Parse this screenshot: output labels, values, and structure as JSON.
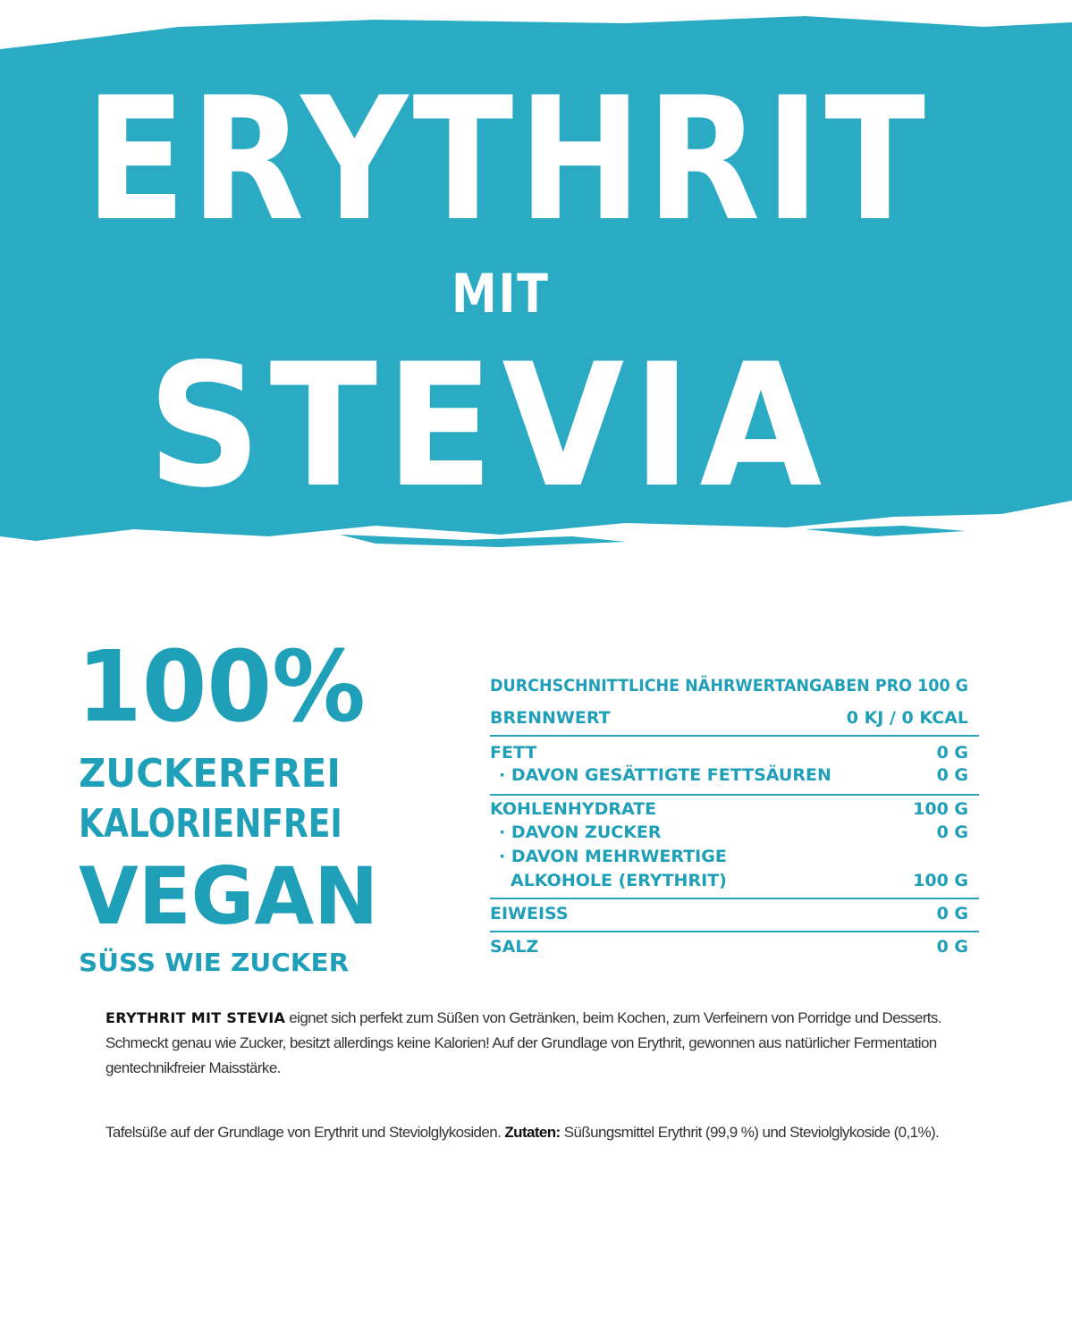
{
  "header": {
    "title_line1": "ERYTHRIT",
    "title_line2": "MIT",
    "title_line3": "STEVIA",
    "banner_color": "#2aabc3"
  },
  "claims": {
    "percent": "100%",
    "items": [
      "ZUCKERFREI",
      "KALORIENFREI",
      "VEGAN",
      "SÜSS WIE ZUCKER"
    ]
  },
  "nutrition": {
    "heading": "DURCHSCHNITTLICHE NÄHRWERTANGABEN PRO 100 G",
    "rows": [
      {
        "label": "BRENNWERT",
        "value": "0 KJ / 0 KCAL"
      },
      {
        "label": "FETT",
        "value": "0 G"
      },
      {
        "label": "· DAVON GESÄTTIGTE FETTSÄUREN",
        "value": "0 G"
      },
      {
        "label": "KOHLENHYDRATE",
        "value": "100 G"
      },
      {
        "label": "· DAVON ZUCKER",
        "value": "0 G"
      },
      {
        "label": "· DAVON MEHRWERTIGE",
        "value": ""
      },
      {
        "label": "ALKOHOLE (ERYTHRIT)",
        "value": "100 G"
      },
      {
        "label": "EIWEISS",
        "value": "0 G"
      },
      {
        "label": "SALZ",
        "value": "0 G"
      }
    ]
  },
  "description": {
    "brand": "ERYTHRIT MIT STEVIA",
    "text": " eignet sich perfekt zum Süßen von Getränken, beim Kochen, zum Verfeinern von Porridge und Desserts. Schmeckt genau wie Zucker, besitzt allerdings keine Kalorien! Auf der Grundlage von Erythrit, gewonnen aus natürlicher Fermentation gentechnikfreier Maisstärke."
  },
  "ingredients": {
    "intro": "Tafelsüße auf der Grundlage von Erythrit und Steviolglykosiden. ",
    "label": "Zutaten:",
    "text": " Süßungsmittel Erythrit (99,9 %) und Steviolglykoside (0,1%)."
  }
}
